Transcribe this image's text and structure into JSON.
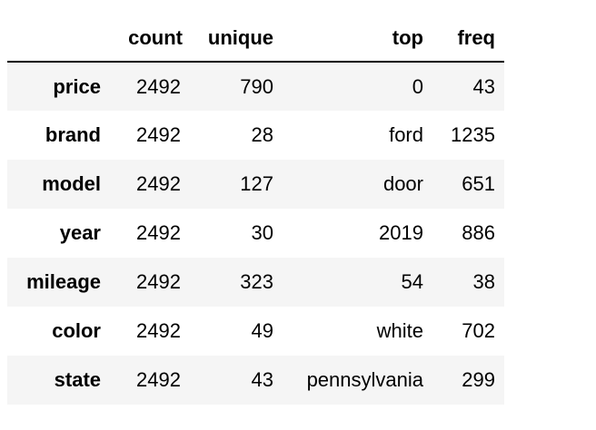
{
  "table": {
    "columns": [
      "count",
      "unique",
      "top",
      "freq"
    ],
    "rows": [
      {
        "index": "price",
        "count": "2492",
        "unique": "790",
        "top": "0",
        "freq": "43"
      },
      {
        "index": "brand",
        "count": "2492",
        "unique": "28",
        "top": "ford",
        "freq": "1235"
      },
      {
        "index": "model",
        "count": "2492",
        "unique": "127",
        "top": "door",
        "freq": "651"
      },
      {
        "index": "year",
        "count": "2492",
        "unique": "30",
        "top": "2019",
        "freq": "886"
      },
      {
        "index": "mileage",
        "count": "2492",
        "unique": "323",
        "top": "54",
        "freq": "38"
      },
      {
        "index": "color",
        "count": "2492",
        "unique": "49",
        "top": "white",
        "freq": "702"
      },
      {
        "index": "state",
        "count": "2492",
        "unique": "43",
        "top": "pennsylvania",
        "freq": "299"
      }
    ]
  }
}
